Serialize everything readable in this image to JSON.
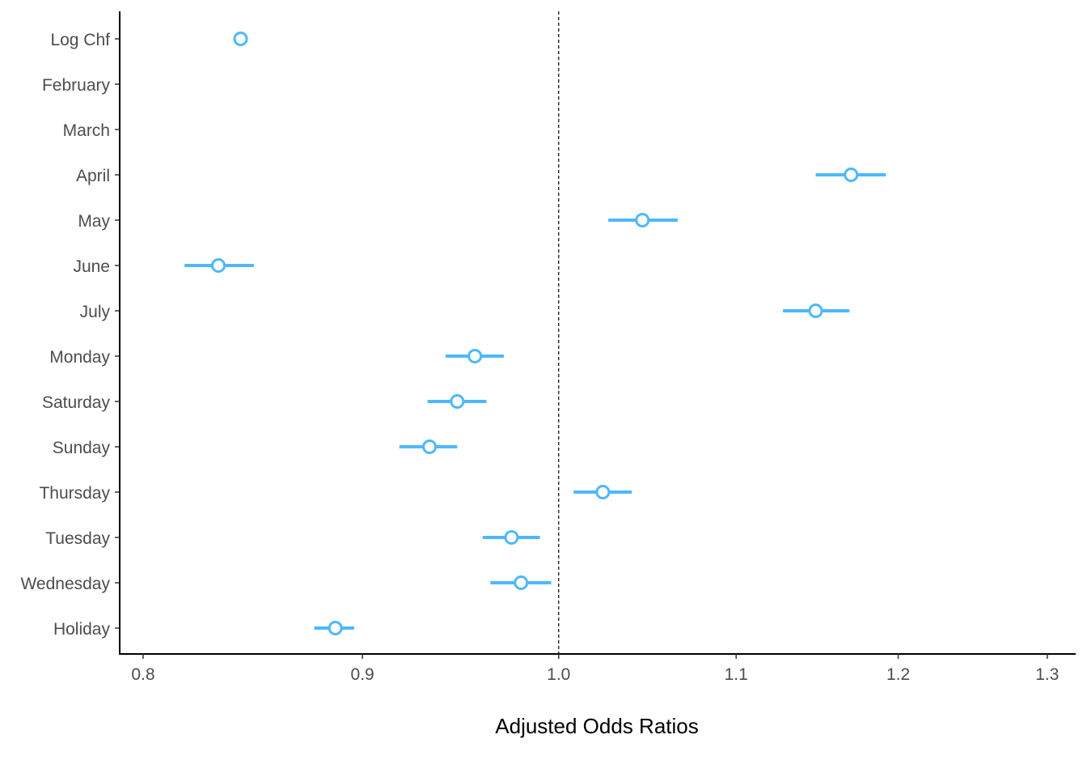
{
  "chart_data": {
    "type": "forest",
    "title": "",
    "xlabel": "Adjusted Odds Ratios",
    "ylabel": "",
    "x_scale": "log",
    "xlim": [
      0.79,
      1.32
    ],
    "x_ticks": [
      0.8,
      0.9,
      1.0,
      1.1,
      1.2,
      1.3
    ],
    "x_tick_labels": [
      "0.8",
      "0.9",
      "1.0",
      "1.1",
      "1.2",
      "1.3"
    ],
    "reference_line": 1.0,
    "grid": false,
    "legend": "none",
    "point_color": "#4db8ff",
    "point_fill": "#ffffff",
    "reference_line_color": "#000000",
    "categories": [
      "Log Chf",
      "February",
      "March",
      "April",
      "May",
      "June",
      "July",
      "Monday",
      "Saturday",
      "Sunday",
      "Thursday",
      "Tuesday",
      "Wednesday",
      "Holiday"
    ],
    "estimates": [
      0.843,
      null,
      null,
      1.17,
      1.046,
      0.833,
      1.148,
      0.956,
      0.947,
      0.933,
      1.024,
      0.975,
      0.98,
      0.887
    ],
    "ci_lower": [
      0.842,
      null,
      null,
      1.148,
      1.027,
      0.818,
      1.128,
      0.941,
      0.932,
      0.918,
      1.008,
      0.96,
      0.964,
      0.877
    ],
    "ci_upper": [
      0.845,
      null,
      null,
      1.192,
      1.066,
      0.849,
      1.169,
      0.971,
      0.962,
      0.947,
      1.04,
      0.99,
      0.996,
      0.896
    ]
  }
}
